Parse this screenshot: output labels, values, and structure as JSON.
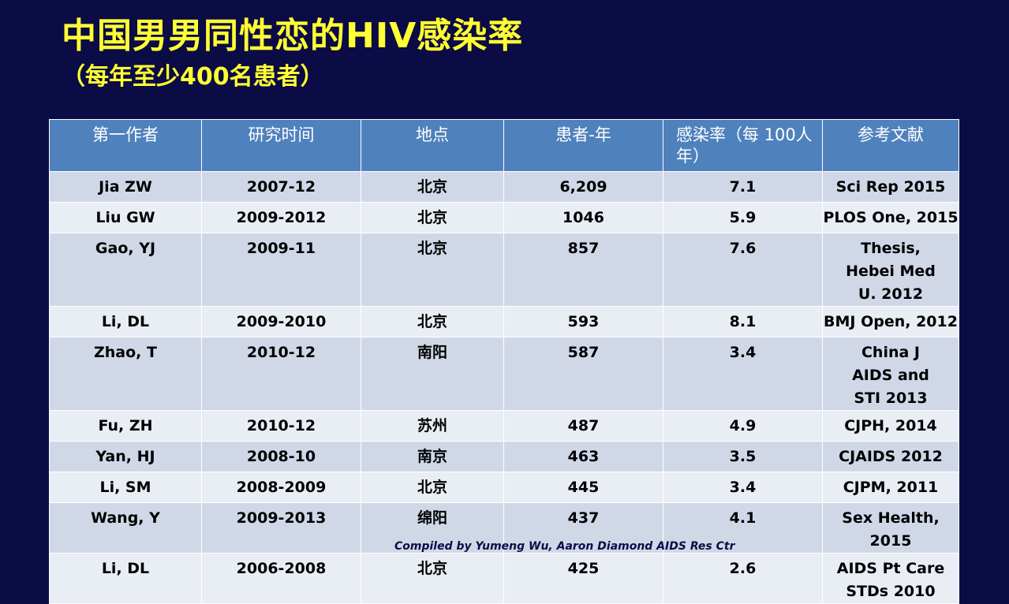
{
  "slide": {
    "title": "中国男男同性恋的HIV感染率",
    "subtitle": "（每年至少400名患者）",
    "footer": "Compiled by Yumeng Wu, Aaron Diamond AIDS Res Ctr"
  },
  "table": {
    "headers": [
      "第一作者",
      "研究时间",
      "地点",
      "患者-年",
      "感染率（每 100人年）",
      "参考文献"
    ],
    "rows": [
      {
        "author": "Jia ZW",
        "period": "2007-12",
        "location": "北京",
        "patient_years": "6,209",
        "rate": "7.1",
        "reference": "Sci Rep 2015"
      },
      {
        "author": "Liu GW",
        "period": "2009-2012",
        "location": "北京",
        "patient_years": "1046",
        "rate": "5.9",
        "reference": "PLOS One, 2015"
      },
      {
        "author": "Gao, YJ",
        "period": "2009-11",
        "location": "北京",
        "patient_years": "857",
        "rate": "7.6",
        "reference": "Thesis, Hebei Med U. 2012"
      },
      {
        "author": "Li, DL",
        "period": "2009-2010",
        "location": "北京",
        "patient_years": "593",
        "rate": "8.1",
        "reference": "BMJ Open, 2012"
      },
      {
        "author": "Zhao, T",
        "period": "2010-12",
        "location": "南阳",
        "patient_years": "587",
        "rate": "3.4",
        "reference": "China J AIDS and STI 2013"
      },
      {
        "author": "Fu, ZH",
        "period": "2010-12",
        "location": "苏州",
        "patient_years": "487",
        "rate": "4.9",
        "reference": "CJPH, 2014"
      },
      {
        "author": "Yan, HJ",
        "period": "2008-10",
        "location": "南京",
        "patient_years": "463",
        "rate": "3.5",
        "reference": "CJAIDS 2012"
      },
      {
        "author": "Li, SM",
        "period": "2008-2009",
        "location": "北京",
        "patient_years": "445",
        "rate": "3.4",
        "reference": "CJPM, 2011"
      },
      {
        "author": "Wang, Y",
        "period": "2009-2013",
        "location": "绵阳",
        "patient_years": "437",
        "rate": "4.1",
        "reference": "Sex Health, 2015"
      },
      {
        "author": "Li, DL",
        "period": "2006-2008",
        "location": "北京",
        "patient_years": "425",
        "rate": "2.6",
        "reference": "AIDS Pt Care STDs 2010"
      }
    ]
  },
  "colors": {
    "background": "#0b0b45",
    "title": "#ffff33",
    "header_fill": "#4f81bd",
    "row_fill_odd": "#d0d8e8",
    "row_fill_even": "#e9edf4"
  }
}
